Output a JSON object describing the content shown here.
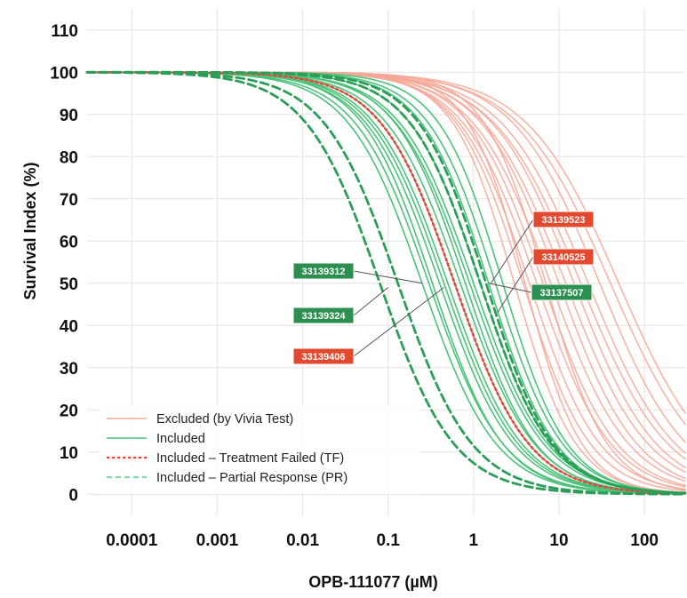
{
  "chart_data": {
    "type": "line",
    "title": "",
    "xlabel": "OPB-111077 (µM)",
    "ylabel": "Survival Index (%)",
    "x_scale": "log",
    "xlim": [
      3e-05,
      300
    ],
    "ylim": [
      -5,
      115
    ],
    "xticks": [
      {
        "value": 0.0001,
        "label": "0.0001"
      },
      {
        "value": 0.001,
        "label": "0.001"
      },
      {
        "value": 0.01,
        "label": "0.01"
      },
      {
        "value": 0.1,
        "label": "0.1"
      },
      {
        "value": 1,
        "label": "1"
      },
      {
        "value": 10,
        "label": "10"
      },
      {
        "value": 100,
        "label": "100"
      }
    ],
    "yticks": [
      0,
      10,
      20,
      30,
      40,
      50,
      60,
      70,
      80,
      90,
      100,
      110
    ],
    "grid": true,
    "legend_position": "bottom-left",
    "colors": {
      "excluded": "#f4a898",
      "included": "#4cc27a",
      "treatment_failed": "#e8453c",
      "partial_response": "#2b9e58",
      "callout_red": "#e2492f",
      "callout_green": "#2a8f4f"
    },
    "legend": [
      {
        "label": "Excluded (by Vivia Test)",
        "color": "#f4a898",
        "style": "solid"
      },
      {
        "label": "Included",
        "color": "#4cc27a",
        "style": "solid"
      },
      {
        "label": "Included – Treatment Failed (TF)",
        "color": "#e8453c",
        "style": "dotted"
      },
      {
        "label": "Included – Partial Response (PR)",
        "color": "#7fd6a4",
        "style": "dashed"
      }
    ],
    "series_groups": [
      {
        "group": "Excluded (by Vivia Test)",
        "model": "Survival = 100 / (1 + (x/IC50)^hill)",
        "color": "#f4a898",
        "style": "solid",
        "curves": [
          {
            "ic50": 3.0,
            "hill": 1.2
          },
          {
            "ic50": 3.8,
            "hill": 1.1
          },
          {
            "ic50": 4.5,
            "hill": 1.05
          },
          {
            "ic50": 5.5,
            "hill": 1.0
          },
          {
            "ic50": 6.5,
            "hill": 1.0
          },
          {
            "ic50": 8.0,
            "hill": 0.95
          },
          {
            "ic50": 10.0,
            "hill": 0.95
          },
          {
            "ic50": 12.0,
            "hill": 0.9
          },
          {
            "ic50": 15.0,
            "hill": 0.9
          },
          {
            "ic50": 18.0,
            "hill": 0.85
          },
          {
            "ic50": 22.0,
            "hill": 0.85
          },
          {
            "ic50": 30.0,
            "hill": 0.85
          },
          {
            "ic50": 40.0,
            "hill": 0.8
          },
          {
            "ic50": 50.0,
            "hill": 0.8
          },
          {
            "ic50": 4.0,
            "hill": 1.3
          },
          {
            "ic50": 7.0,
            "hill": 1.2
          }
        ]
      },
      {
        "group": "Included",
        "color": "#4cc27a",
        "style": "solid",
        "curves": [
          {
            "ic50": 0.25,
            "hill": 1.0
          },
          {
            "ic50": 0.3,
            "hill": 1.0
          },
          {
            "ic50": 0.33,
            "hill": 1.05
          },
          {
            "ic50": 0.4,
            "hill": 1.0
          },
          {
            "ic50": 0.45,
            "hill": 1.0
          },
          {
            "ic50": 0.5,
            "hill": 1.0
          },
          {
            "ic50": 0.6,
            "hill": 1.0
          },
          {
            "ic50": 0.7,
            "hill": 1.0
          },
          {
            "ic50": 0.8,
            "hill": 1.05
          },
          {
            "ic50": 0.9,
            "hill": 1.0
          },
          {
            "ic50": 1.0,
            "hill": 1.0
          },
          {
            "ic50": 1.2,
            "hill": 1.05
          },
          {
            "ic50": 1.5,
            "hill": 1.1
          },
          {
            "ic50": 1.8,
            "hill": 1.1
          },
          {
            "ic50": 2.2,
            "hill": 1.15
          }
        ]
      },
      {
        "group": "Included – Treatment Failed (TF)",
        "color": "#e8453c",
        "style": "dotted",
        "curves": [
          {
            "ic50": 0.6,
            "hill": 1.0
          }
        ]
      },
      {
        "group": "Included – Partial Response (PR)",
        "color": "#2b9e58",
        "style": "dashed",
        "curves": [
          {
            "ic50": 0.08,
            "hill": 1.0
          },
          {
            "ic50": 0.13,
            "hill": 1.0
          },
          {
            "ic50": 1.2,
            "hill": 1.05
          },
          {
            "ic50": 1.4,
            "hill": 1.1
          }
        ]
      }
    ],
    "callouts": [
      {
        "label": "33139523",
        "color": "red",
        "pointer": {
          "x": 1.6,
          "y": 50
        }
      },
      {
        "label": "33140525",
        "color": "red",
        "pointer": {
          "x": 1.9,
          "y": 43
        }
      },
      {
        "label": "33137507",
        "color": "green",
        "pointer": {
          "x": 1.5,
          "y": 50
        }
      },
      {
        "label": "33139312",
        "color": "green",
        "pointer": {
          "x": 0.25,
          "y": 50
        }
      },
      {
        "label": "33139324",
        "color": "green",
        "pointer": {
          "x": 0.1,
          "y": 49
        }
      },
      {
        "label": "33139406",
        "color": "red",
        "pointer": {
          "x": 0.45,
          "y": 49
        }
      }
    ]
  }
}
